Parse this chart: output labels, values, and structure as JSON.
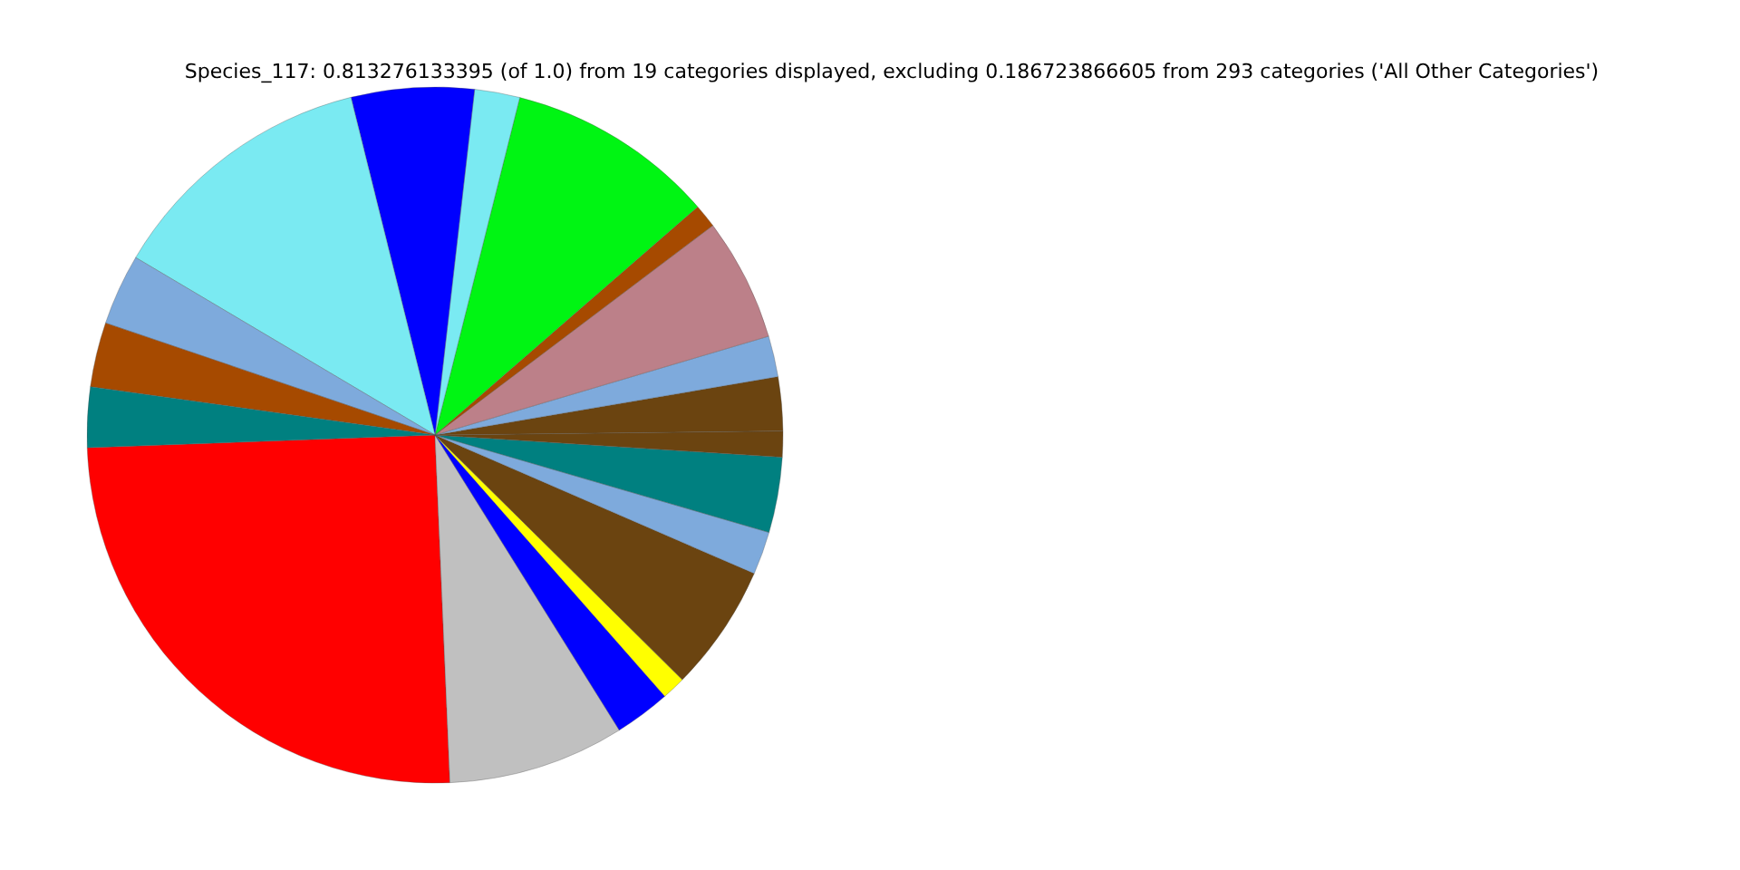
{
  "chart_data": {
    "type": "pie",
    "title": "Species_117: 0.813276133395 (of 1.0) from 19 categories displayed, excluding 0.186723866605 from 293 categories ('All Other Categories')",
    "categories": [
      null,
      null,
      null,
      null,
      null,
      null,
      null,
      null,
      null,
      null,
      null,
      null,
      null,
      null,
      null,
      null,
      null,
      null,
      null
    ],
    "values": [
      25.1,
      8.2,
      2.6,
      1.1,
      5.9,
      2.0,
      3.5,
      1.2,
      2.5,
      1.9,
      5.7,
      1.1,
      9.7,
      2.1,
      5.7,
      12.6,
      3.3,
      3.0,
      2.8
    ],
    "colors": [
      "#ff0000",
      "#c0c0c0",
      "#0000ff",
      "#ffff00",
      "#6b4410",
      "#7eaadc",
      "#008080",
      "#6b4410",
      "#6b4410",
      "#7eaadc",
      "#bc8089",
      "#a64a00",
      "#00f513",
      "#7aeaf2",
      "#0000ff",
      "#7aeaf2",
      "#7eaadc",
      "#a64a00",
      "#008080"
    ],
    "legend": false
  }
}
